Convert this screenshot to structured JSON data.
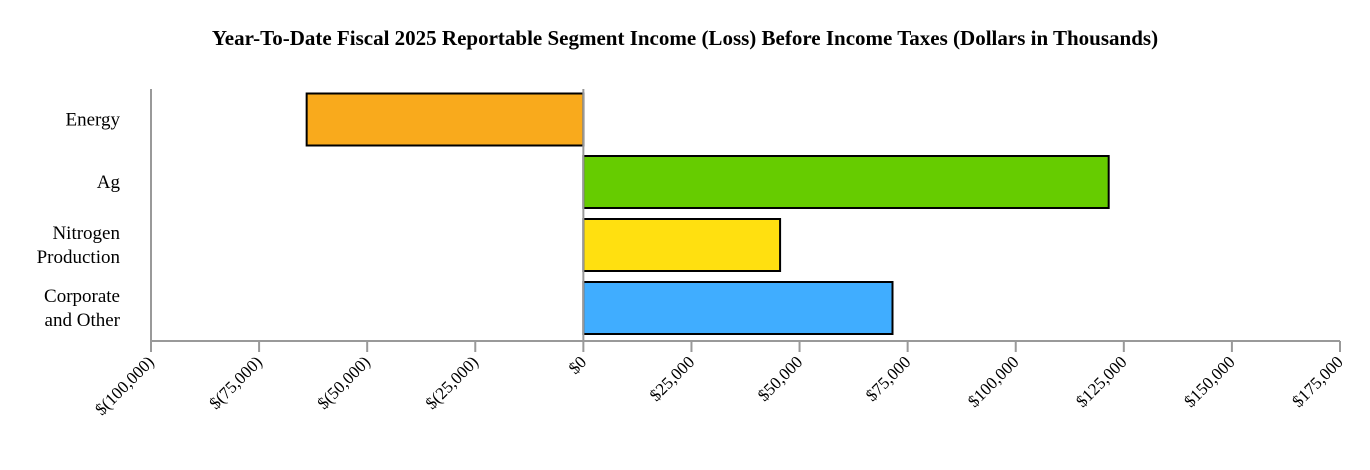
{
  "chart_data": {
    "type": "bar",
    "orientation": "horizontal",
    "title": "Year-To-Date Fiscal 2025 Reportable Segment Income (Loss) Before Income Taxes (Dollars in Thousands)",
    "xlabel": "",
    "ylabel": "",
    "categories": [
      [
        "Energy"
      ],
      [
        "Ag"
      ],
      [
        "Nitrogen",
        "Production"
      ],
      [
        "Corporate",
        "and Other"
      ]
    ],
    "values": [
      -64000,
      121500,
      45500,
      71500
    ],
    "colors": [
      "#F9AA1C",
      "#66CC00",
      "#FFE010",
      "#40ADFF"
    ],
    "xlim": [
      -100000,
      175000
    ],
    "xticks": [
      -100000,
      -75000,
      -50000,
      -25000,
      0,
      25000,
      50000,
      75000,
      100000,
      125000,
      150000,
      175000
    ],
    "xtick_labels": [
      "$(100,000)",
      "$(75,000)",
      "$(50,000)",
      "$(25,000)",
      "$0",
      "$25,000",
      "$50,000",
      "$75,000",
      "$100,000",
      "$125,000",
      "$150,000",
      "$175,000"
    ],
    "grid": false,
    "legend": "none"
  }
}
